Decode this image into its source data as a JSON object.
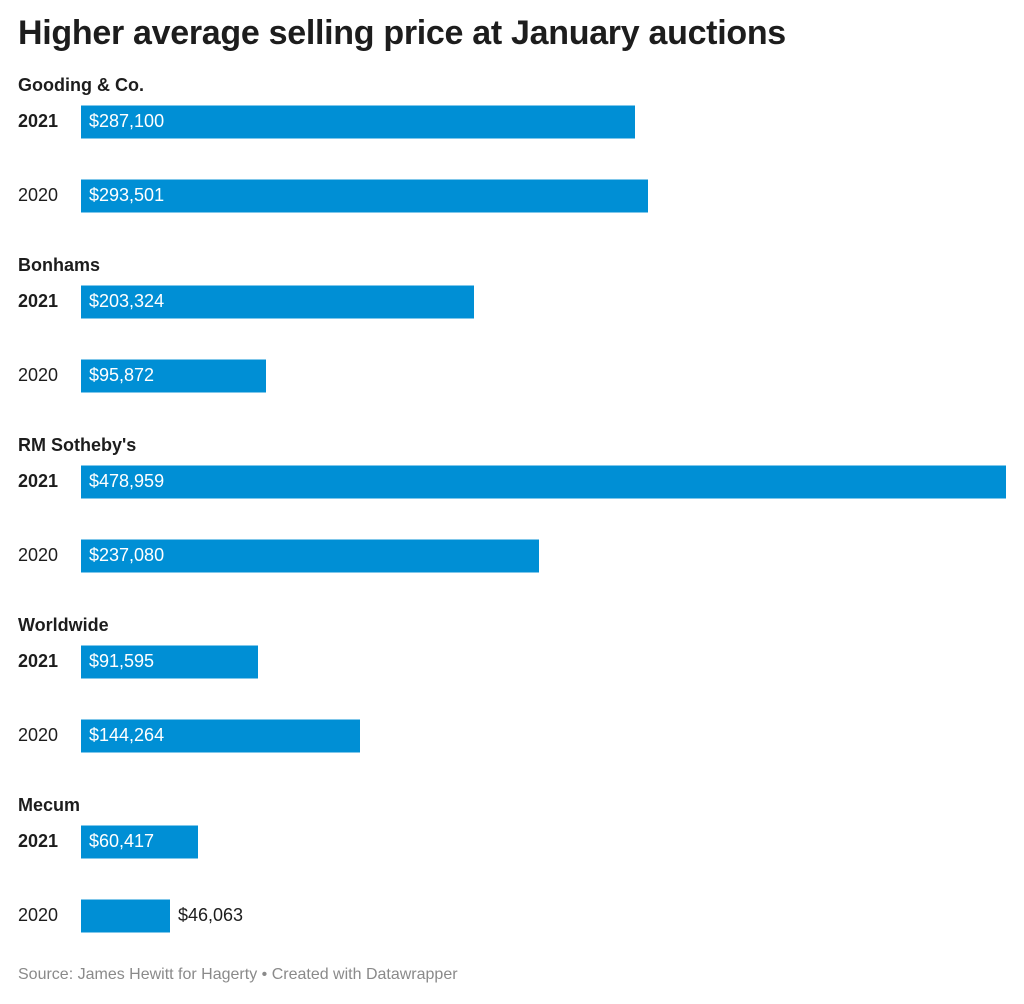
{
  "title": "Higher average selling price at January auctions",
  "source": "Source: James Hewitt for Hagerty • Created with Datawrapper",
  "colors": {
    "bar": "#008fd5",
    "text": "#1d1d1d",
    "inside_label": "#ffffff",
    "source": "#8a8a8a"
  },
  "chart_data": {
    "type": "bar",
    "orientation": "horizontal",
    "groups": [
      {
        "name": "Gooding & Co.",
        "rows": [
          {
            "year": "2021",
            "value": 287100,
            "label": "$287,100"
          },
          {
            "year": "2020",
            "value": 293501,
            "label": "$293,501"
          }
        ]
      },
      {
        "name": "Bonhams",
        "rows": [
          {
            "year": "2021",
            "value": 203324,
            "label": "$203,324"
          },
          {
            "year": "2020",
            "value": 95872,
            "label": "$95,872"
          }
        ]
      },
      {
        "name": "RM Sotheby's",
        "rows": [
          {
            "year": "2021",
            "value": 478959,
            "label": "$478,959"
          },
          {
            "year": "2020",
            "value": 237080,
            "label": "$237,080"
          }
        ]
      },
      {
        "name": "Worldwide",
        "rows": [
          {
            "year": "2021",
            "value": 91595,
            "label": "$91,595"
          },
          {
            "year": "2020",
            "value": 144264,
            "label": "$144,264"
          }
        ]
      },
      {
        "name": "Mecum",
        "rows": [
          {
            "year": "2021",
            "value": 60417,
            "label": "$60,417"
          },
          {
            "year": "2020",
            "value": 46063,
            "label": "$46,063"
          }
        ]
      }
    ],
    "xlim": [
      0,
      478959
    ],
    "grid": false,
    "legend": "none"
  }
}
